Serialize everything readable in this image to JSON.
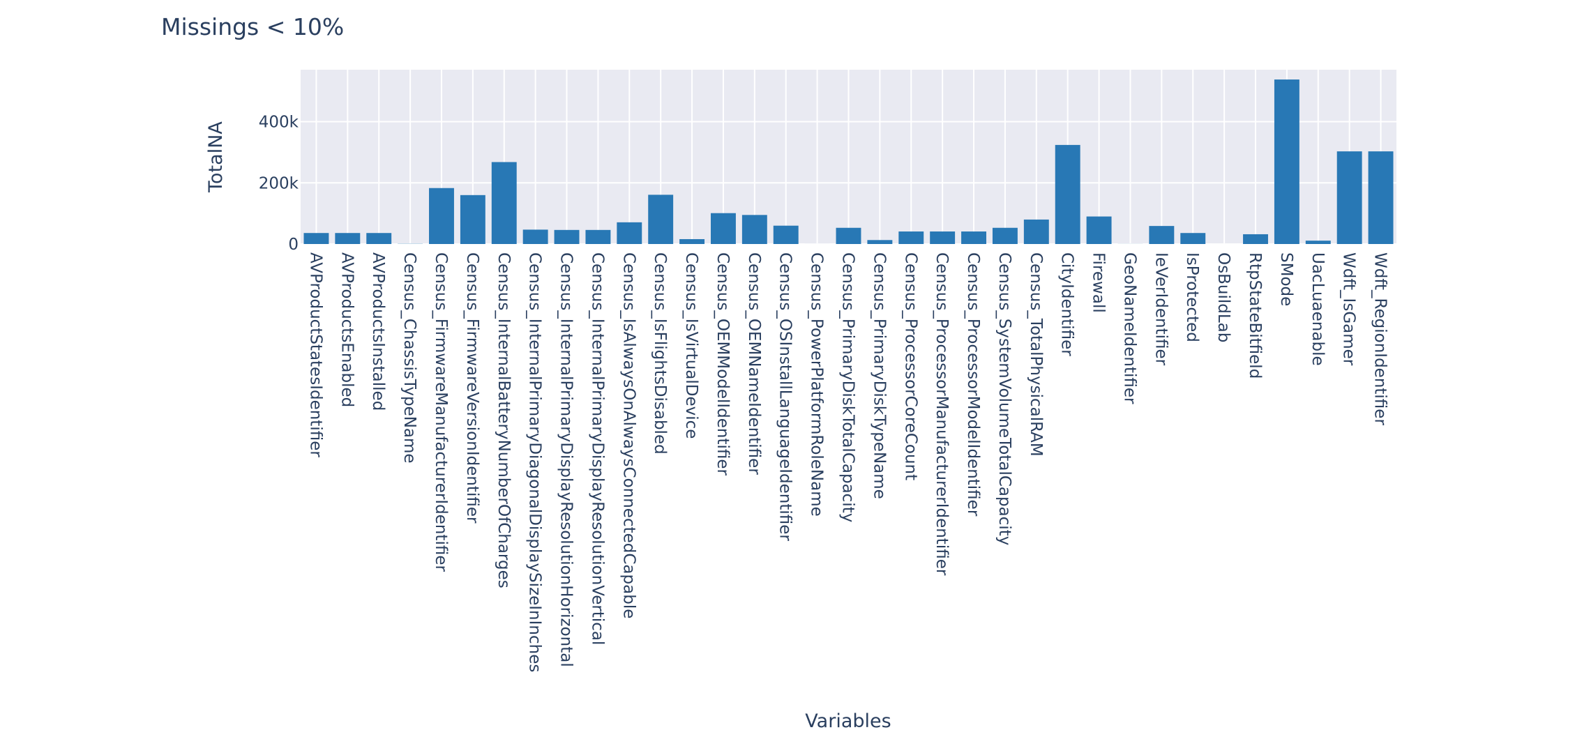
{
  "chart_data": {
    "type": "bar",
    "title": "Missings < 10%",
    "xlabel": "Variables",
    "ylabel": "TotalNA",
    "ylim": [
      0,
      570000
    ],
    "yticks": [
      {
        "value": 0,
        "label": "0"
      },
      {
        "value": 200000,
        "label": "200k"
      },
      {
        "value": 400000,
        "label": "400k"
      }
    ],
    "grid": true,
    "plot_bg": "#e9eaf2",
    "bar_color": "#2878b5",
    "categories": [
      "AVProductStatesIdentifier",
      "AVProductsEnabled",
      "AVProductsInstalled",
      "Census_ChassisTypeName",
      "Census_FirmwareManufacturerIdentifier",
      "Census_FirmwareVersionIdentifier",
      "Census_InternalBatteryNumberOfCharges",
      "Census_InternalPrimaryDiagonalDisplaySizeInInches",
      "Census_InternalPrimaryDisplayResolutionHorizontal",
      "Census_InternalPrimaryDisplayResolutionVertical",
      "Census_IsAlwaysOnAlwaysConnectedCapable",
      "Census_IsFlightsDisabled",
      "Census_IsVirtualDevice",
      "Census_OEMModelIdentifier",
      "Census_OEMNameIdentifier",
      "Census_OSInstallLanguageIdentifier",
      "Census_PowerPlatformRoleName",
      "Census_PrimaryDiskTotalCapacity",
      "Census_PrimaryDiskTypeName",
      "Census_ProcessorCoreCount",
      "Census_ProcessorManufacturerIdentifier",
      "Census_ProcessorModelIdentifier",
      "Census_SystemVolumeTotalCapacity",
      "Census_TotalPhysicalRAM",
      "CityIdentifier",
      "Firewall",
      "GeoNameIdentifier",
      "IeVerIdentifier",
      "IsProtected",
      "OsBuildLab",
      "RtpStateBitfield",
      "SMode",
      "UacLuaenable",
      "Wdft_IsGamer",
      "Wdft_RegionIdentifier"
    ],
    "values": [
      36000,
      36000,
      36000,
      600,
      183000,
      160000,
      268000,
      47000,
      46000,
      46000,
      71000,
      161000,
      16000,
      101000,
      95000,
      60000,
      60,
      53000,
      13000,
      41000,
      41000,
      41000,
      53000,
      80000,
      324000,
      90000,
      200,
      59000,
      36000,
      20,
      32000,
      538000,
      11000,
      303000,
      303000
    ]
  }
}
